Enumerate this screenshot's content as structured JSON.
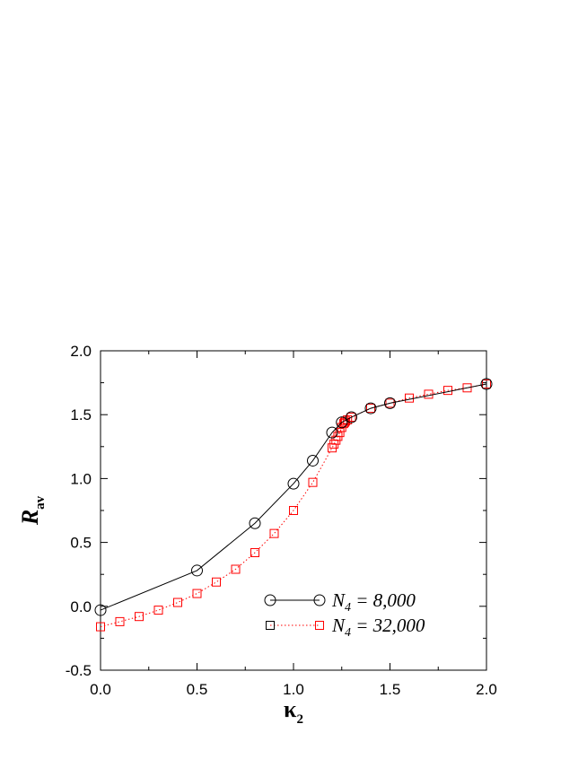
{
  "chart_data": {
    "type": "line",
    "xlabel": "κ",
    "xlabel_sub": "2",
    "ylabel": "R",
    "ylabel_sub": "av",
    "xlim": [
      0.0,
      2.0
    ],
    "ylim": [
      -0.5,
      2.0
    ],
    "x_ticks": [
      0.0,
      0.5,
      1.0,
      1.5,
      2.0
    ],
    "x_tick_labels": [
      "0.0",
      "0.5",
      "1.0",
      "1.5",
      "2.0"
    ],
    "y_ticks": [
      -0.5,
      0.0,
      0.5,
      1.0,
      1.5,
      2.0
    ],
    "y_tick_labels": [
      "-0.5",
      "0.0",
      "0.5",
      "1.0",
      "1.5",
      "2.0"
    ],
    "grid": false,
    "legend_position": "bottom-right",
    "series": [
      {
        "label_var": "N",
        "label_sub": "4",
        "label_value": " =   8,000",
        "marker": "circle",
        "line_style": "solid",
        "color": "#000000",
        "x": [
          0.0,
          0.5,
          0.8,
          1.0,
          1.1,
          1.2,
          1.25,
          1.3,
          1.4,
          1.5,
          2.0
        ],
        "y": [
          -0.03,
          0.28,
          0.65,
          0.96,
          1.14,
          1.36,
          1.44,
          1.48,
          1.55,
          1.59,
          1.74
        ]
      },
      {
        "label_var": "N",
        "label_sub": "4",
        "label_value": " = 32,000",
        "marker": "square",
        "line_style": "dotted",
        "color": "#ff0000",
        "x": [
          0.0,
          0.1,
          0.2,
          0.3,
          0.4,
          0.5,
          0.6,
          0.7,
          0.8,
          0.9,
          1.0,
          1.1,
          1.2,
          1.21,
          1.22,
          1.23,
          1.24,
          1.25,
          1.26,
          1.265,
          1.27,
          1.28,
          1.3,
          1.4,
          1.5,
          1.6,
          1.7,
          1.8,
          1.9,
          2.0
        ],
        "y": [
          -0.16,
          -0.12,
          -0.08,
          -0.03,
          0.03,
          0.1,
          0.19,
          0.29,
          0.42,
          0.57,
          0.75,
          0.97,
          1.24,
          1.27,
          1.3,
          1.33,
          1.36,
          1.4,
          1.43,
          1.44,
          1.45,
          1.46,
          1.48,
          1.55,
          1.59,
          1.63,
          1.66,
          1.69,
          1.71,
          1.74
        ]
      }
    ]
  }
}
